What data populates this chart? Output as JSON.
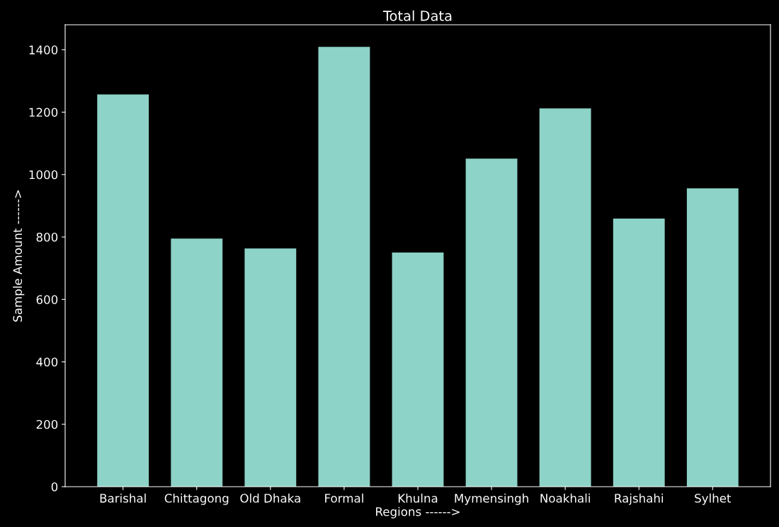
{
  "chart_data": {
    "type": "bar",
    "title": "Total Data",
    "xlabel": "Regions ------>",
    "ylabel": "Sample Amount ------>",
    "categories": [
      "Barishal",
      "Chittagong",
      "Old Dhaka",
      "Formal",
      "Khulna",
      "Mymensingh",
      "Noakhali",
      "Rajshahi",
      "Sylhet"
    ],
    "values": [
      1257,
      795,
      763,
      1409,
      750,
      1051,
      1212,
      859,
      956
    ],
    "color": "#8dd3c7",
    "ylim": [
      0,
      1480
    ],
    "yticks": [
      0,
      200,
      400,
      600,
      800,
      1000,
      1200,
      1400
    ],
    "grid": false
  }
}
